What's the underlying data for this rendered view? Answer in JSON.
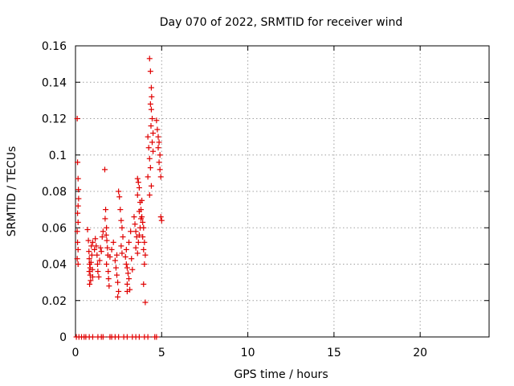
{
  "chart_data": {
    "type": "scatter",
    "title": "Day 070 of 2022, SRMTID for receiver wind",
    "xlabel": "GPS time / hours",
    "ylabel": "SRMTID / TECUs",
    "xlim": [
      0,
      24
    ],
    "ylim": [
      0,
      0.16
    ],
    "xticks": [
      0,
      5,
      10,
      15,
      20
    ],
    "xtick_labels": [
      "0",
      "5",
      "10",
      "15",
      "20"
    ],
    "yticks": [
      0,
      0.02,
      0.04,
      0.06,
      0.08,
      0.1,
      0.12,
      0.14,
      0.16
    ],
    "ytick_labels": [
      "0",
      "0.02",
      "0.04",
      "0.06",
      "0.08",
      "0.1",
      "0.12",
      "0.14",
      "0.16"
    ],
    "grid": true,
    "marker": "+",
    "color": "#e00000",
    "series": [
      {
        "name": "SRMTID",
        "points": [
          [
            0.1,
            0.12
          ],
          [
            0.12,
            0.096
          ],
          [
            0.15,
            0.087
          ],
          [
            0.17,
            0.081
          ],
          [
            0.18,
            0.076
          ],
          [
            0.15,
            0.072
          ],
          [
            0.12,
            0.068
          ],
          [
            0.15,
            0.063
          ],
          [
            0.1,
            0.058
          ],
          [
            0.12,
            0.052
          ],
          [
            0.15,
            0.048
          ],
          [
            0.1,
            0.043
          ],
          [
            0.15,
            0.04
          ],
          [
            0.7,
            0.059
          ],
          [
            0.75,
            0.053
          ],
          [
            0.78,
            0.047
          ],
          [
            0.8,
            0.043
          ],
          [
            0.82,
            0.04
          ],
          [
            0.85,
            0.038
          ],
          [
            0.8,
            0.036
          ],
          [
            0.85,
            0.034
          ],
          [
            0.88,
            0.031
          ],
          [
            0.82,
            0.029
          ],
          [
            0.9,
            0.041
          ],
          [
            0.95,
            0.045
          ],
          [
            0.92,
            0.05
          ],
          [
            1.0,
            0.052
          ],
          [
            0.98,
            0.037
          ],
          [
            1.0,
            0.033
          ],
          [
            1.1,
            0.048
          ],
          [
            1.15,
            0.054
          ],
          [
            1.2,
            0.05
          ],
          [
            1.25,
            0.045
          ],
          [
            1.28,
            0.04
          ],
          [
            1.3,
            0.036
          ],
          [
            1.35,
            0.033
          ],
          [
            1.4,
            0.042
          ],
          [
            1.45,
            0.049
          ],
          [
            1.5,
            0.047
          ],
          [
            1.55,
            0.055
          ],
          [
            1.6,
            0.058
          ],
          [
            1.7,
            0.092
          ],
          [
            1.75,
            0.07
          ],
          [
            1.72,
            0.065
          ],
          [
            1.8,
            0.06
          ],
          [
            1.78,
            0.056
          ],
          [
            1.82,
            0.053
          ],
          [
            1.85,
            0.049
          ],
          [
            1.88,
            0.045
          ],
          [
            1.8,
            0.04
          ],
          [
            1.9,
            0.036
          ],
          [
            1.92,
            0.032
          ],
          [
            1.95,
            0.028
          ],
          [
            2.0,
            0.044
          ],
          [
            2.1,
            0.048
          ],
          [
            2.2,
            0.052
          ],
          [
            2.3,
            0.042
          ],
          [
            2.35,
            0.038
          ],
          [
            2.4,
            0.034
          ],
          [
            2.45,
            0.03
          ],
          [
            2.5,
            0.025
          ],
          [
            2.45,
            0.022
          ],
          [
            2.4,
            0.045
          ],
          [
            2.5,
            0.08
          ],
          [
            2.55,
            0.077
          ],
          [
            2.6,
            0.07
          ],
          [
            2.65,
            0.064
          ],
          [
            2.7,
            0.06
          ],
          [
            2.75,
            0.055
          ],
          [
            2.65,
            0.05
          ],
          [
            2.7,
            0.046
          ],
          [
            2.9,
            0.044
          ],
          [
            2.95,
            0.04
          ],
          [
            3.0,
            0.038
          ],
          [
            3.05,
            0.035
          ],
          [
            3.1,
            0.032
          ],
          [
            3.0,
            0.029
          ],
          [
            3.15,
            0.026
          ],
          [
            2.95,
            0.048
          ],
          [
            3.1,
            0.052
          ],
          [
            3.2,
            0.058
          ],
          [
            3.25,
            0.043
          ],
          [
            3.3,
            0.037
          ],
          [
            3.0,
            0.025
          ],
          [
            3.4,
            0.066
          ],
          [
            3.45,
            0.062
          ],
          [
            3.5,
            0.058
          ],
          [
            3.55,
            0.055
          ],
          [
            3.5,
            0.049
          ],
          [
            3.6,
            0.046
          ],
          [
            3.65,
            0.052
          ],
          [
            3.7,
            0.056
          ],
          [
            3.75,
            0.06
          ],
          [
            3.8,
            0.065
          ],
          [
            3.7,
            0.069
          ],
          [
            3.85,
            0.075
          ],
          [
            3.6,
            0.078
          ],
          [
            3.6,
            0.087
          ],
          [
            3.65,
            0.085
          ],
          [
            3.7,
            0.082
          ],
          [
            3.75,
            0.074
          ],
          [
            3.8,
            0.07
          ],
          [
            3.85,
            0.066
          ],
          [
            3.9,
            0.063
          ],
          [
            3.95,
            0.06
          ],
          [
            3.9,
            0.055
          ],
          [
            4.0,
            0.052
          ],
          [
            3.95,
            0.048
          ],
          [
            4.05,
            0.045
          ],
          [
            4.0,
            0.04
          ],
          [
            3.95,
            0.029
          ],
          [
            4.05,
            0.019
          ],
          [
            4.2,
            0.11
          ],
          [
            4.25,
            0.104
          ],
          [
            4.3,
            0.098
          ],
          [
            4.35,
            0.093
          ],
          [
            4.2,
            0.088
          ],
          [
            4.4,
            0.083
          ],
          [
            4.3,
            0.078
          ],
          [
            4.3,
            0.153
          ],
          [
            4.35,
            0.146
          ],
          [
            4.4,
            0.137
          ],
          [
            4.42,
            0.132
          ],
          [
            4.35,
            0.128
          ],
          [
            4.4,
            0.125
          ],
          [
            4.45,
            0.12
          ],
          [
            4.38,
            0.116
          ],
          [
            4.5,
            0.112
          ],
          [
            4.45,
            0.107
          ],
          [
            4.5,
            0.102
          ],
          [
            4.7,
            0.119
          ],
          [
            4.75,
            0.114
          ],
          [
            4.8,
            0.11
          ],
          [
            4.85,
            0.107
          ],
          [
            4.8,
            0.104
          ],
          [
            4.9,
            0.1
          ],
          [
            4.85,
            0.096
          ],
          [
            4.9,
            0.092
          ],
          [
            4.95,
            0.088
          ],
          [
            4.95,
            0.066
          ],
          [
            5.0,
            0.064
          ],
          [
            0.05,
            0
          ],
          [
            0.2,
            0
          ],
          [
            0.35,
            0
          ],
          [
            0.5,
            0
          ],
          [
            0.6,
            0
          ],
          [
            0.8,
            0
          ],
          [
            1.0,
            0
          ],
          [
            1.3,
            0
          ],
          [
            1.5,
            0
          ],
          [
            1.6,
            0
          ],
          [
            2.0,
            0
          ],
          [
            2.1,
            0
          ],
          [
            2.3,
            0
          ],
          [
            2.5,
            0
          ],
          [
            2.8,
            0
          ],
          [
            3.0,
            0
          ],
          [
            3.3,
            0
          ],
          [
            3.5,
            0
          ],
          [
            3.7,
            0
          ],
          [
            4.0,
            0
          ],
          [
            4.2,
            0
          ],
          [
            4.6,
            0
          ],
          [
            4.7,
            0
          ]
        ]
      }
    ]
  }
}
